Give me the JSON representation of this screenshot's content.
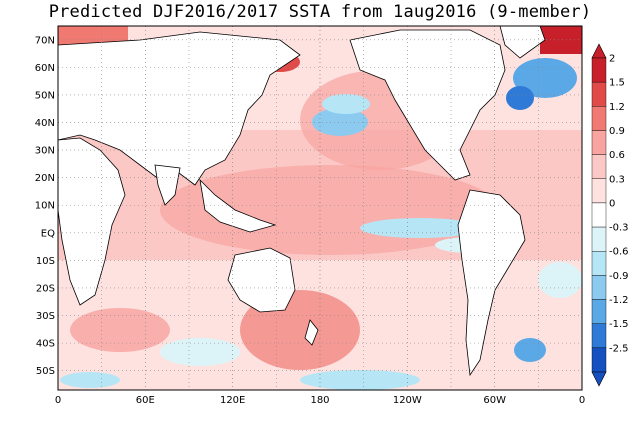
{
  "title": "Predicted DJF2016/2017 SSTA from 1aug2016 (9-member)",
  "map": {
    "lat_labels": [
      "70N",
      "60N",
      "50N",
      "40N",
      "30N",
      "20N",
      "10N",
      "EQ",
      "10S",
      "20S",
      "30S",
      "40S",
      "50S"
    ],
    "lon_labels": [
      "0",
      "60E",
      "120E",
      "180",
      "120W",
      "60W",
      "0"
    ],
    "lon_range": [
      0,
      360
    ],
    "lat_range": [
      -57,
      75
    ],
    "grid": "dotted",
    "field": "sea surface temperature anomaly",
    "land_color": "#ffffff"
  },
  "colorbar": {
    "labels": [
      "2",
      "1.5",
      "1.2",
      "0.9",
      "0.6",
      "0.3",
      "0",
      "-0.3",
      "-0.6",
      "-0.9",
      "-1.2",
      "-1.5",
      "-2.5"
    ],
    "colors": [
      "#c8202a",
      "#e04a48",
      "#f07a72",
      "#f8a4a0",
      "#fbc8c6",
      "#fde2e0",
      "#ffffff",
      "#dcf4f8",
      "#b6e6f6",
      "#8ccaf0",
      "#5aa8e6",
      "#2e7ad6",
      "#1450c0"
    ],
    "orientation": "vertical",
    "position": "right"
  }
}
